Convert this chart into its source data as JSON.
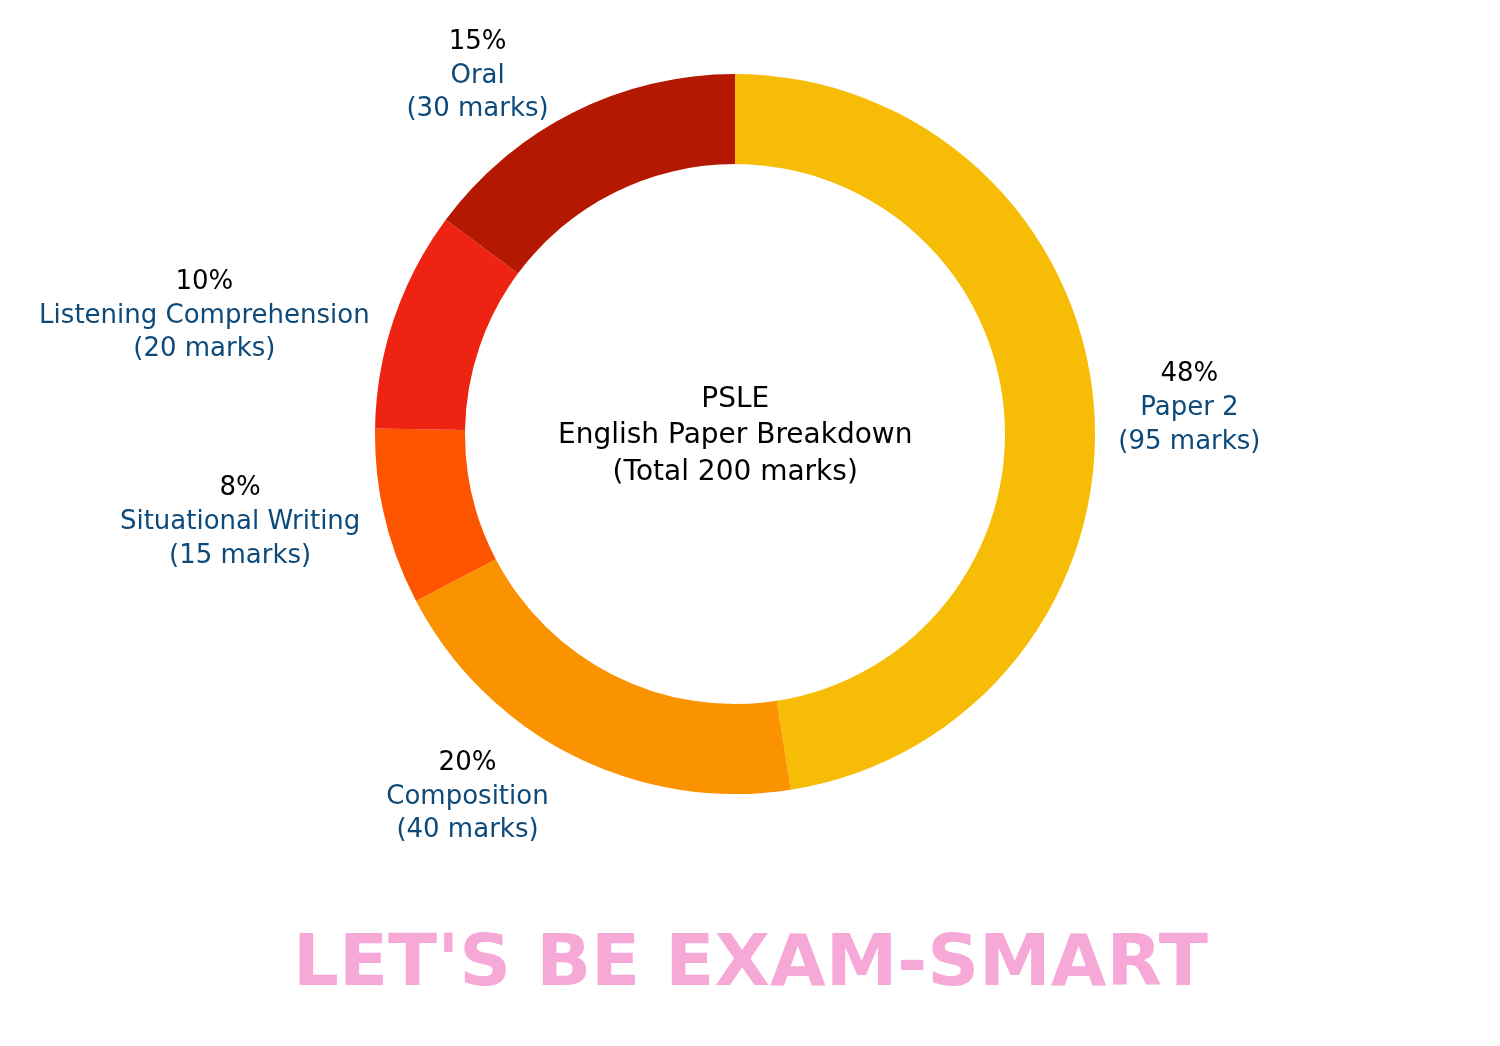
{
  "chart_data": {
    "type": "donut",
    "title": "PSLE\nEnglish Paper Breakdown\n(Total 200 marks)",
    "categories": [
      "Paper 2 (95 marks)",
      "Composition (40 marks)",
      "Situational Writing (15 marks)",
      "Listening Comprehension (20 marks)",
      "Oral (30 marks)"
    ],
    "values": [
      48,
      20,
      8,
      10,
      15
    ],
    "value_labels": [
      "48%",
      "20%",
      "8%",
      "10%",
      "15%"
    ],
    "colors": [
      "#f7bc05",
      "#fb9200",
      "#fd5400",
      "#ee2311",
      "#b51800"
    ],
    "annotations": [
      "LET'S BE EXAM-SMART"
    ],
    "legend": false
  }
}
